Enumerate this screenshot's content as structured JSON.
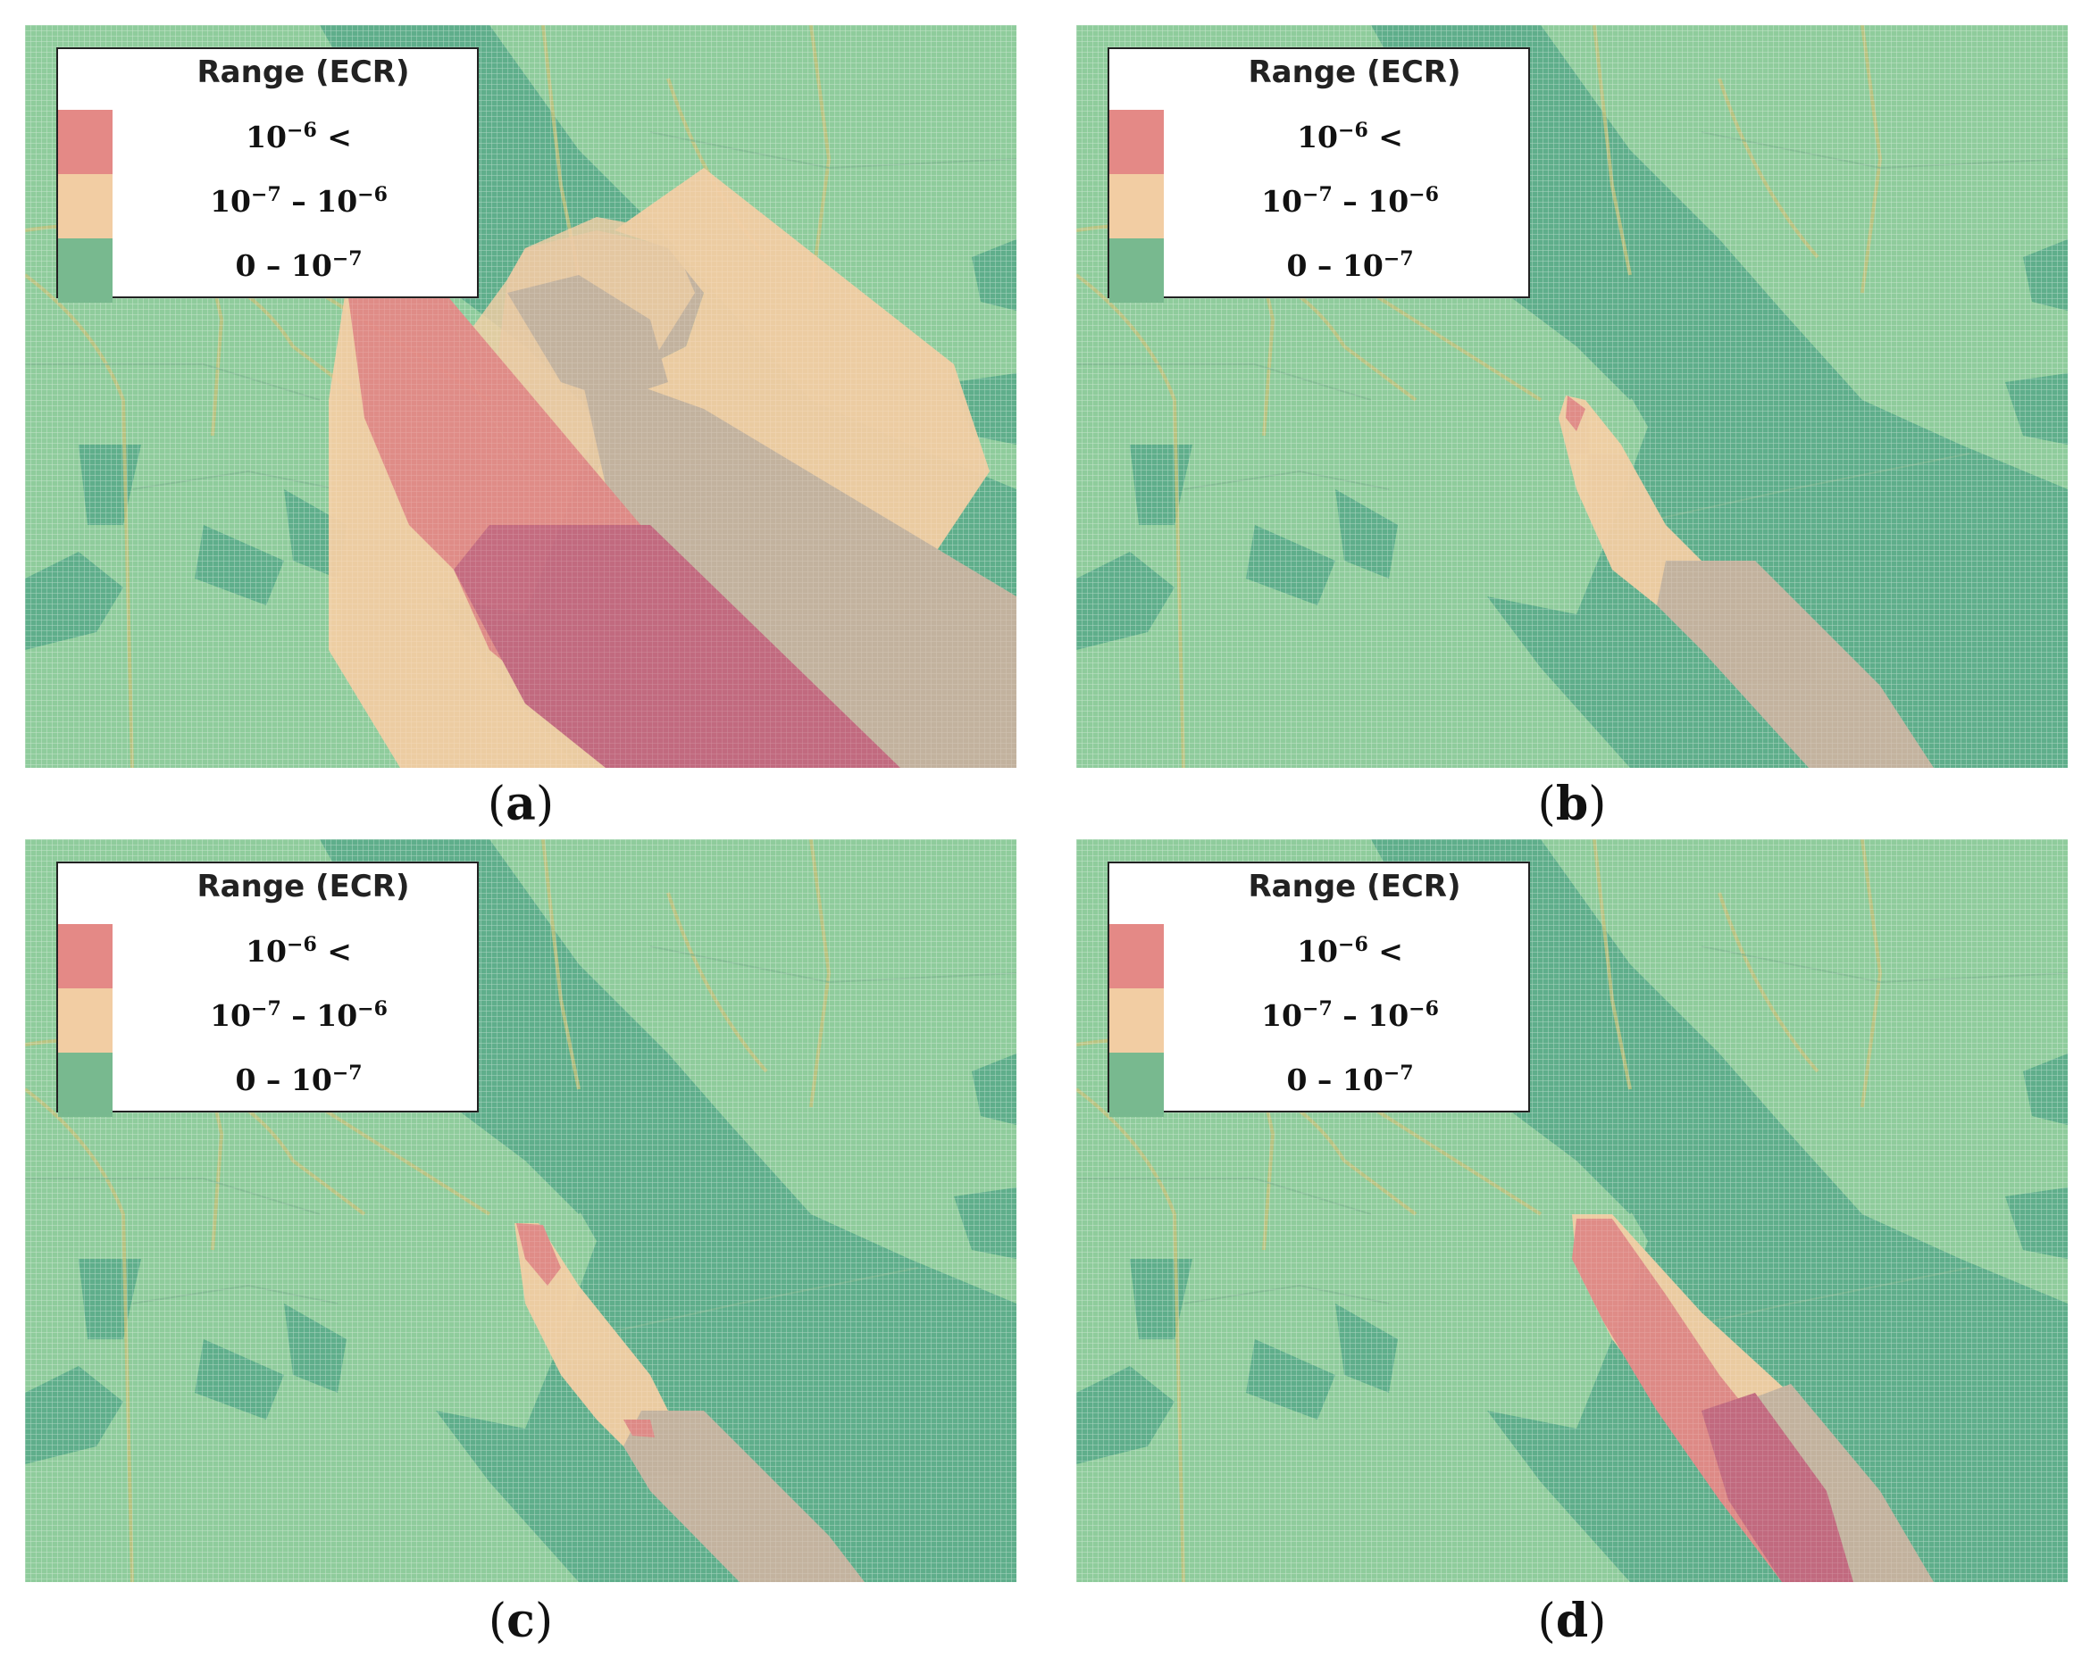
{
  "legend": {
    "title": "Range (ECR)",
    "classes": [
      {
        "base": "10",
        "exp": "−6",
        "suffix": " <",
        "color": "#e48986"
      },
      {
        "base": "10",
        "exp": "−7",
        "mid": " – 10",
        "exp2": "−6",
        "color": "#f2cda3"
      },
      {
        "base": "0 – 10",
        "exp": "−7",
        "color": "#78b98f"
      }
    ]
  },
  "panels": [
    {
      "id": "a",
      "caption_open": "(",
      "caption_letter": "a",
      "caption_close": ")"
    },
    {
      "id": "b",
      "caption_open": "(",
      "caption_letter": "b",
      "caption_close": ")"
    },
    {
      "id": "c",
      "caption_open": "(",
      "caption_letter": "c",
      "caption_close": ")"
    },
    {
      "id": "d",
      "caption_open": "(",
      "caption_letter": "d",
      "caption_close": ")"
    }
  ],
  "colors": {
    "land": "#8fcc9c",
    "water": "#5fae8b",
    "road": "#c2c07a",
    "high_risk": "#e48986",
    "mid_risk": "#f2cda3",
    "overlap_high": "#c7677f",
    "overlap_mid": "#c8b3a0"
  }
}
